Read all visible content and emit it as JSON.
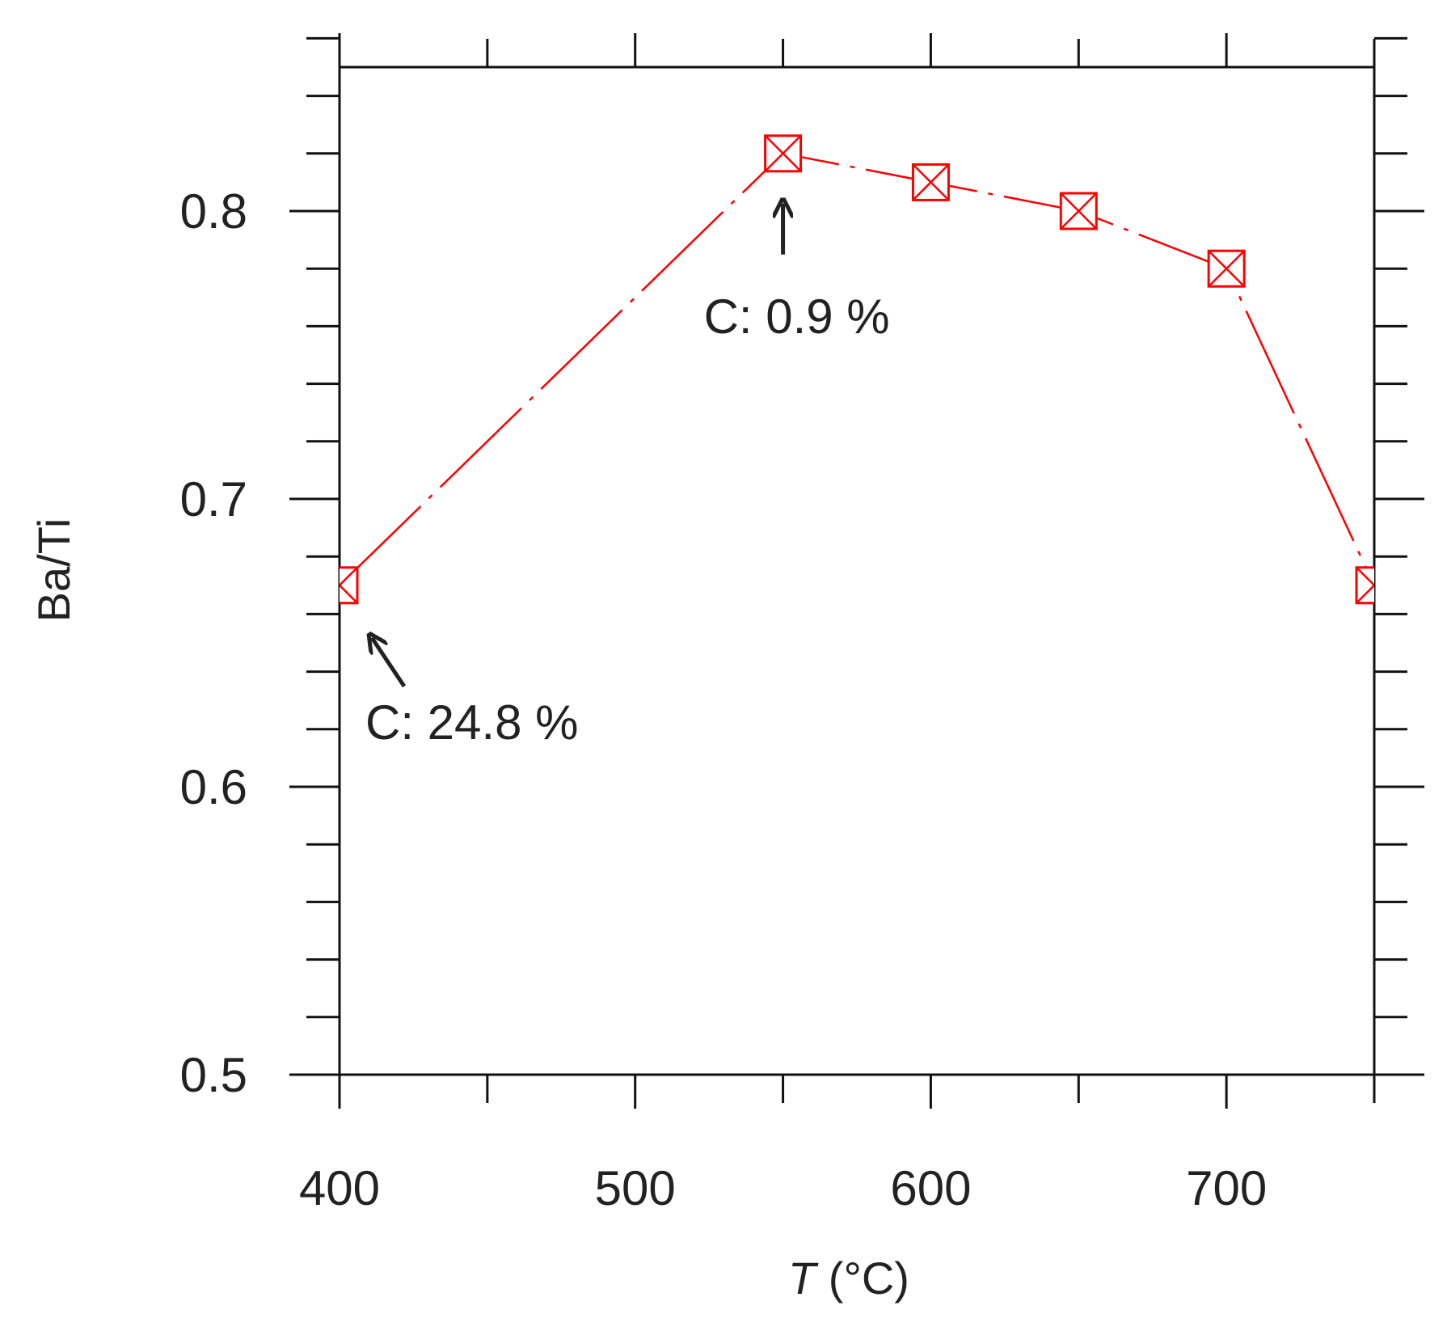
{
  "chart_data": {
    "type": "line",
    "xlabel_italic": "T",
    "xlabel_rest": " (°C)",
    "ylabel": "Ba/Ti",
    "xlim": [
      400,
      750
    ],
    "ylim": [
      0.5,
      0.85
    ],
    "x_ticks_labeled": [
      400,
      500,
      600,
      700
    ],
    "x_tick_labels": [
      "400",
      "500",
      "600",
      "700"
    ],
    "y_ticks_labeled": [
      0.5,
      0.6,
      0.7,
      0.8
    ],
    "y_tick_labels": [
      "0.5",
      "0.6",
      "0.7",
      "0.8"
    ],
    "x_minor_step": 50,
    "y_minor_step": 0.02,
    "grid": false,
    "series": [
      {
        "color": "#ff0000",
        "marker": "crossed-square",
        "line_style": "dash-dot",
        "x": [
          400,
          550,
          600,
          650,
          700,
          750
        ],
        "y": [
          0.67,
          0.82,
          0.81,
          0.8,
          0.78,
          0.67
        ]
      }
    ],
    "annotations": [
      {
        "text": "C: 0.9 %",
        "target_x": 550,
        "target_y": 0.82,
        "arrow": "up"
      },
      {
        "text": "C: 24.8 %",
        "target_x": 400,
        "target_y": 0.67,
        "arrow": "up-left"
      }
    ]
  }
}
